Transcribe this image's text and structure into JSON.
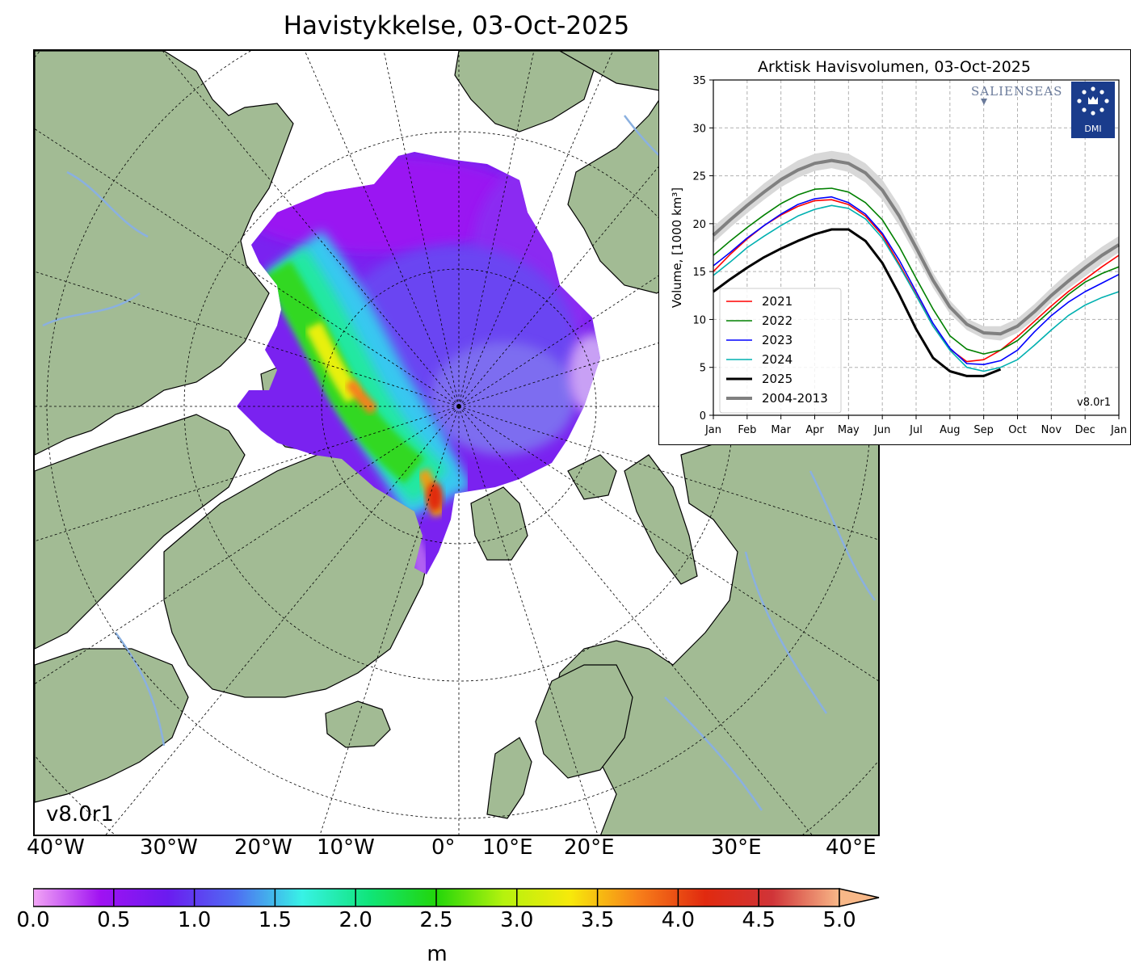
{
  "map": {
    "title": "Havistykkelse, 03-Oct-2025",
    "version": "v8.0r1",
    "longitude_labels": [
      "40°W",
      "30°W",
      "20°W",
      "10°W",
      "0°",
      "10°E",
      "20°E",
      "30°E",
      "40°E"
    ],
    "colors": {
      "land": "#a2bb94",
      "ocean": "#ffffff",
      "rivers": "#8ab0e0",
      "coast": "#000000"
    }
  },
  "colorbar": {
    "ticks": [
      "0.0",
      "0.5",
      "1.0",
      "1.5",
      "2.0",
      "2.5",
      "3.0",
      "3.5",
      "4.0",
      "4.5",
      "5.0"
    ],
    "unit": "m",
    "min": 0.0,
    "max": 5.0,
    "stops": [
      "#f2a6f5",
      "#a012f2",
      "#6b1bf0",
      "#4f6cf2",
      "#38f2e6",
      "#10e57a",
      "#22d60a",
      "#b5f20e",
      "#f7e90b",
      "#f7801a",
      "#e12a0f",
      "#d03438",
      "#f8b888"
    ]
  },
  "chart_data": {
    "type": "line",
    "title": "Arktisk Havisvolumen, 03-Oct-2025",
    "ylabel": "Volume, [1000 km³]",
    "xlabel": "",
    "xticks": [
      "Jan",
      "Feb",
      "Mar",
      "Apr",
      "May",
      "Jun",
      "Jul",
      "Aug",
      "Sep",
      "Oct",
      "Nov",
      "Dec",
      "Jan"
    ],
    "yticks": [
      "0",
      "5",
      "10",
      "15",
      "20",
      "25",
      "30",
      "35"
    ],
    "xlim": [
      0,
      12
    ],
    "ylim": [
      0,
      35
    ],
    "grid": true,
    "legend_position": "lower-left",
    "logos": [
      "SALIENSEAS",
      "DMI"
    ],
    "version": "v8.0r1",
    "x": [
      0,
      0.5,
      1,
      1.5,
      2,
      2.5,
      3,
      3.5,
      4,
      4.5,
      5,
      5.5,
      6,
      6.5,
      7,
      7.5,
      8,
      8.5,
      9,
      9.5,
      10,
      10.5,
      11,
      11.5,
      12
    ],
    "band": {
      "name": "2004-2013",
      "lower": [
        18.0,
        19.6,
        21.1,
        22.5,
        23.8,
        24.8,
        25.5,
        25.8,
        25.4,
        24.3,
        22.5,
        19.8,
        16.6,
        13.3,
        10.6,
        8.9,
        8.0,
        7.8,
        8.6,
        10.0,
        11.8,
        13.2,
        14.5,
        15.8,
        17.0
      ],
      "upper": [
        19.7,
        21.2,
        22.7,
        24.2,
        25.5,
        26.6,
        27.3,
        27.6,
        27.3,
        26.3,
        24.6,
        21.9,
        18.4,
        14.9,
        12.0,
        10.1,
        9.3,
        9.3,
        10.1,
        11.6,
        13.3,
        14.9,
        16.3,
        17.6,
        18.7
      ]
    },
    "series": [
      {
        "name": "2021",
        "color": "#ff0000",
        "values": [
          15.0,
          16.8,
          18.4,
          19.8,
          20.9,
          21.8,
          22.4,
          22.5,
          22.0,
          20.8,
          18.8,
          15.8,
          12.6,
          9.3,
          6.9,
          5.6,
          5.8,
          6.8,
          8.2,
          9.8,
          11.4,
          12.9,
          14.2,
          15.5,
          16.7
        ]
      },
      {
        "name": "2022",
        "color": "#008000",
        "values": [
          16.7,
          18.2,
          19.6,
          20.9,
          22.1,
          23.0,
          23.6,
          23.7,
          23.3,
          22.2,
          20.4,
          17.6,
          14.3,
          11.1,
          8.3,
          6.9,
          6.4,
          6.8,
          7.8,
          9.4,
          11.0,
          12.6,
          13.9,
          14.8,
          15.5
        ]
      },
      {
        "name": "2023",
        "color": "#0000ff",
        "values": [
          15.6,
          17.0,
          18.5,
          19.8,
          21.0,
          22.0,
          22.6,
          22.8,
          22.2,
          21.0,
          19.0,
          16.2,
          12.9,
          9.6,
          7.0,
          5.4,
          5.3,
          5.7,
          6.8,
          8.7,
          10.4,
          11.8,
          12.9,
          13.8,
          14.7
        ]
      },
      {
        "name": "2024",
        "color": "#00b0b0",
        "values": [
          14.6,
          16.0,
          17.5,
          18.7,
          19.8,
          20.8,
          21.5,
          21.9,
          21.6,
          20.5,
          18.5,
          15.6,
          12.5,
          9.3,
          6.8,
          5.0,
          4.6,
          5.0,
          5.8,
          7.3,
          8.9,
          10.4,
          11.5,
          12.3,
          12.9
        ]
      },
      {
        "name": "2025",
        "color": "#000000",
        "values": [
          12.9,
          14.2,
          15.4,
          16.5,
          17.4,
          18.2,
          18.9,
          19.4,
          19.4,
          18.2,
          15.9,
          12.6,
          9.0,
          6.0,
          4.6,
          4.1,
          4.1,
          4.8,
          null,
          null,
          null,
          null,
          null,
          null,
          null
        ]
      },
      {
        "name": "2004-2013",
        "color": "#808080",
        "values": [
          18.8,
          20.4,
          21.9,
          23.3,
          24.6,
          25.6,
          26.3,
          26.6,
          26.3,
          25.3,
          23.5,
          20.8,
          17.5,
          14.1,
          11.3,
          9.5,
          8.6,
          8.5,
          9.3,
          10.8,
          12.5,
          14.0,
          15.4,
          16.7,
          17.8
        ]
      }
    ]
  }
}
